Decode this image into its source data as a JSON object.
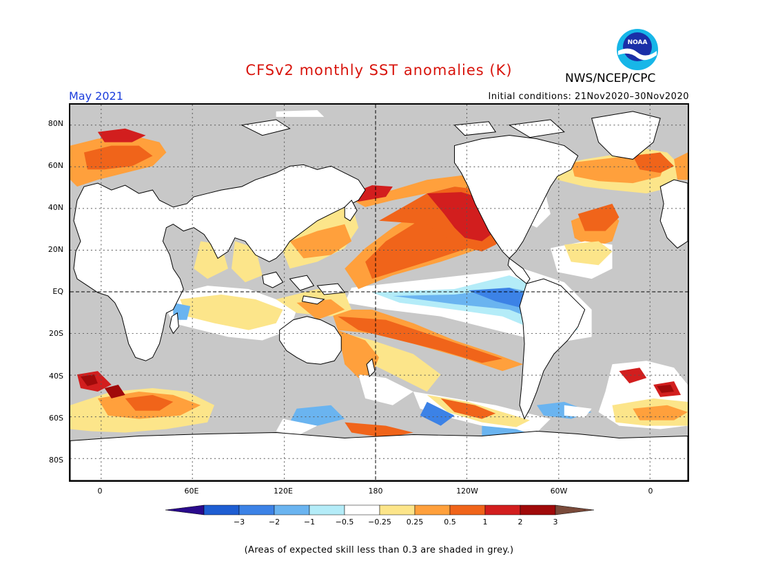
{
  "header": {
    "title": "CFSv2 monthly SST anomalies (K)",
    "agency": "NWS/NCEP/CPC",
    "logo_text": "NOAA",
    "period": "May 2021",
    "initial_conditions": "Initial conditions: 21Nov2020–30Nov2020"
  },
  "map": {
    "projection": "cylindrical equidistant, centered on 180",
    "lat_labels": [
      "80N",
      "60N",
      "40N",
      "20N",
      "EQ",
      "20S",
      "40S",
      "60S",
      "80S"
    ],
    "lon_labels": [
      "0",
      "60E",
      "120E",
      "180",
      "120W",
      "60W",
      "0"
    ],
    "colors": {
      "skill_mask": "#c8c8c8",
      "land": "#ffffff",
      "coast": "#000000"
    }
  },
  "legend": {
    "labels": [
      "−3",
      "−2",
      "−1",
      "−0.5",
      "−0.25",
      "0.25",
      "0.5",
      "1",
      "2",
      "3"
    ],
    "colors": [
      "#2a0a8c",
      "#1e5ed2",
      "#3c82e6",
      "#6ab4f0",
      "#b4ecf8",
      "#ffffff",
      "#fce58a",
      "#ffa03c",
      "#f0641a",
      "#d21e1e",
      "#a00a0a",
      "#7a4a3a"
    ]
  },
  "footnote": "(Areas of expected skill less than 0.3 are shaded in grey.)"
}
